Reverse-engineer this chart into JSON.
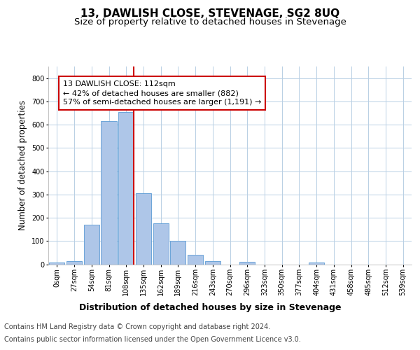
{
  "title": "13, DAWLISH CLOSE, STEVENAGE, SG2 8UQ",
  "subtitle": "Size of property relative to detached houses in Stevenage",
  "xlabel": "Distribution of detached houses by size in Stevenage",
  "ylabel": "Number of detached properties",
  "footer_line1": "Contains HM Land Registry data © Crown copyright and database right 2024.",
  "footer_line2": "Contains public sector information licensed under the Open Government Licence v3.0.",
  "bin_labels": [
    "0sqm",
    "27sqm",
    "54sqm",
    "81sqm",
    "108sqm",
    "135sqm",
    "162sqm",
    "189sqm",
    "216sqm",
    "243sqm",
    "270sqm",
    "296sqm",
    "323sqm",
    "350sqm",
    "377sqm",
    "404sqm",
    "431sqm",
    "458sqm",
    "485sqm",
    "512sqm",
    "539sqm"
  ],
  "bin_counts": [
    8,
    13,
    170,
    615,
    655,
    305,
    175,
    100,
    40,
    14,
    0,
    10,
    0,
    0,
    0,
    8,
    0,
    0,
    0,
    0,
    0
  ],
  "bar_color": "#aec6e8",
  "bar_edge_color": "#5b9bd5",
  "property_bin_index": 4,
  "property_size_label": "112sqm",
  "vline_color": "#cc0000",
  "annotation_text": "13 DAWLISH CLOSE: 112sqm\n← 42% of detached houses are smaller (882)\n57% of semi-detached houses are larger (1,191) →",
  "annotation_box_color": "#ffffff",
  "annotation_box_edge": "#cc0000",
  "ylim": [
    0,
    850
  ],
  "yticks": [
    0,
    100,
    200,
    300,
    400,
    500,
    600,
    700,
    800
  ],
  "background_color": "#ffffff",
  "grid_color": "#b8cfe4",
  "title_fontsize": 11,
  "subtitle_fontsize": 9.5,
  "xlabel_fontsize": 9,
  "ylabel_fontsize": 8.5,
  "tick_fontsize": 7,
  "footer_fontsize": 7,
  "annotation_fontsize": 8
}
